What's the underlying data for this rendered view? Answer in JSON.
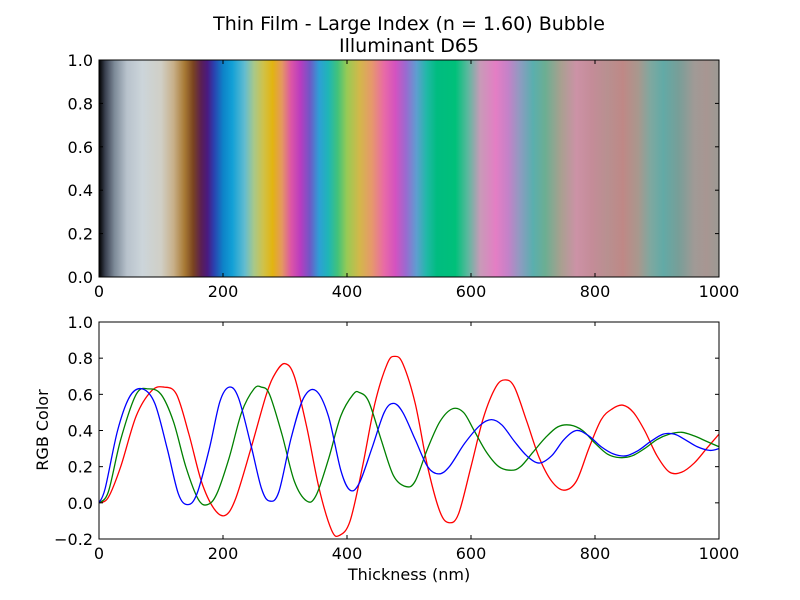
{
  "chart_data": [
    {
      "type": "heatmap",
      "title": "Thin Film - Large Index (n = 1.60) Bubble",
      "subtitle": "Illuminant D65",
      "xlabel": "",
      "ylabel": "",
      "xlim": [
        0,
        1000
      ],
      "ylim": [
        0,
        1
      ],
      "x_ticks": [
        "0",
        "200",
        "400",
        "600",
        "800",
        "1000"
      ],
      "y_ticks": [
        "0.0",
        "0.2",
        "0.4",
        "0.6",
        "0.8",
        "1.0"
      ],
      "color_stripe": [
        {
          "x": 0,
          "color": "#000000"
        },
        {
          "x": 10,
          "color": "#3a4150"
        },
        {
          "x": 25,
          "color": "#7d8a98"
        },
        {
          "x": 45,
          "color": "#b8c2cc"
        },
        {
          "x": 70,
          "color": "#ccd5da"
        },
        {
          "x": 100,
          "color": "#d0cfc6"
        },
        {
          "x": 120,
          "color": "#c8b08a"
        },
        {
          "x": 138,
          "color": "#a87a35"
        },
        {
          "x": 152,
          "color": "#7a4420"
        },
        {
          "x": 165,
          "color": "#5a1f55"
        },
        {
          "x": 175,
          "color": "#4a1a80"
        },
        {
          "x": 185,
          "color": "#2c3fae"
        },
        {
          "x": 200,
          "color": "#0d82c8"
        },
        {
          "x": 215,
          "color": "#12a0d6"
        },
        {
          "x": 235,
          "color": "#62bcd0"
        },
        {
          "x": 250,
          "color": "#a8c88a"
        },
        {
          "x": 265,
          "color": "#cfc24a"
        },
        {
          "x": 280,
          "color": "#e2b410"
        },
        {
          "x": 295,
          "color": "#e49860"
        },
        {
          "x": 310,
          "color": "#dc55a6"
        },
        {
          "x": 325,
          "color": "#b83cc0"
        },
        {
          "x": 340,
          "color": "#7058c6"
        },
        {
          "x": 355,
          "color": "#2e9fd6"
        },
        {
          "x": 370,
          "color": "#1fb6b6"
        },
        {
          "x": 385,
          "color": "#42c27a"
        },
        {
          "x": 400,
          "color": "#98ca55"
        },
        {
          "x": 420,
          "color": "#d2b84a"
        },
        {
          "x": 440,
          "color": "#e6986c"
        },
        {
          "x": 460,
          "color": "#e86aa6"
        },
        {
          "x": 478,
          "color": "#d452c0"
        },
        {
          "x": 495,
          "color": "#9a6ad0"
        },
        {
          "x": 512,
          "color": "#5e9ed0"
        },
        {
          "x": 528,
          "color": "#22b8a8"
        },
        {
          "x": 545,
          "color": "#00bc80"
        },
        {
          "x": 575,
          "color": "#00c07a"
        },
        {
          "x": 595,
          "color": "#5cb89e"
        },
        {
          "x": 615,
          "color": "#c89ab8"
        },
        {
          "x": 640,
          "color": "#e47ec4"
        },
        {
          "x": 660,
          "color": "#c482c8"
        },
        {
          "x": 680,
          "color": "#8c9cc0"
        },
        {
          "x": 700,
          "color": "#5aafae"
        },
        {
          "x": 720,
          "color": "#6cae92"
        },
        {
          "x": 745,
          "color": "#a8a090"
        },
        {
          "x": 770,
          "color": "#cc92a6"
        },
        {
          "x": 795,
          "color": "#c48c98"
        },
        {
          "x": 820,
          "color": "#b89090"
        },
        {
          "x": 845,
          "color": "#bf8886"
        },
        {
          "x": 870,
          "color": "#a8988e"
        },
        {
          "x": 890,
          "color": "#7ea8a0"
        },
        {
          "x": 910,
          "color": "#62aaa6"
        },
        {
          "x": 935,
          "color": "#789e98"
        },
        {
          "x": 960,
          "color": "#a09a96"
        },
        {
          "x": 980,
          "color": "#a89692"
        },
        {
          "x": 1000,
          "color": "#9c9a94"
        }
      ]
    },
    {
      "type": "line",
      "title": "",
      "xlabel": "Thickness (nm)",
      "ylabel": "RGB Color",
      "xlim": [
        0,
        1000
      ],
      "ylim": [
        -0.2,
        1.0
      ],
      "x_ticks": [
        "0",
        "200",
        "400",
        "600",
        "800",
        "1000"
      ],
      "y_ticks": [
        "−0.2",
        "0.0",
        "0.2",
        "0.4",
        "0.6",
        "0.8",
        "1.0"
      ],
      "series": [
        {
          "color": "#ff0000",
          "points": [
            [
              0,
              0
            ],
            [
              15,
              0.03
            ],
            [
              35,
              0.2
            ],
            [
              60,
              0.48
            ],
            [
              85,
              0.62
            ],
            [
              105,
              0.64
            ],
            [
              125,
              0.6
            ],
            [
              145,
              0.38
            ],
            [
              165,
              0.12
            ],
            [
              185,
              -0.03
            ],
            [
              203,
              -0.07
            ],
            [
              220,
              0.02
            ],
            [
              245,
              0.3
            ],
            [
              270,
              0.6
            ],
            [
              285,
              0.72
            ],
            [
              300,
              0.77
            ],
            [
              315,
              0.7
            ],
            [
              335,
              0.42
            ],
            [
              355,
              0.08
            ],
            [
              375,
              -0.15
            ],
            [
              388,
              -0.18
            ],
            [
              405,
              -0.1
            ],
            [
              425,
              0.2
            ],
            [
              445,
              0.55
            ],
            [
              465,
              0.77
            ],
            [
              477,
              0.81
            ],
            [
              490,
              0.77
            ],
            [
              510,
              0.55
            ],
            [
              530,
              0.2
            ],
            [
              550,
              -0.05
            ],
            [
              565,
              -0.11
            ],
            [
              580,
              -0.06
            ],
            [
              600,
              0.2
            ],
            [
              620,
              0.47
            ],
            [
              640,
              0.64
            ],
            [
              655,
              0.68
            ],
            [
              670,
              0.64
            ],
            [
              690,
              0.45
            ],
            [
              710,
              0.25
            ],
            [
              730,
              0.12
            ],
            [
              750,
              0.07
            ],
            [
              770,
              0.12
            ],
            [
              790,
              0.3
            ],
            [
              810,
              0.46
            ],
            [
              828,
              0.52
            ],
            [
              845,
              0.54
            ],
            [
              862,
              0.5
            ],
            [
              880,
              0.4
            ],
            [
              900,
              0.26
            ],
            [
              920,
              0.17
            ],
            [
              940,
              0.17
            ],
            [
              960,
              0.22
            ],
            [
              980,
              0.3
            ],
            [
              1000,
              0.38
            ]
          ]
        },
        {
          "color": "#008000",
          "points": [
            [
              0,
              0
            ],
            [
              15,
              0.06
            ],
            [
              35,
              0.35
            ],
            [
              60,
              0.6
            ],
            [
              80,
              0.63
            ],
            [
              100,
              0.6
            ],
            [
              120,
              0.45
            ],
            [
              140,
              0.2
            ],
            [
              160,
              0.02
            ],
            [
              175,
              -0.01
            ],
            [
              190,
              0.05
            ],
            [
              210,
              0.25
            ],
            [
              230,
              0.5
            ],
            [
              250,
              0.63
            ],
            [
              262,
              0.64
            ],
            [
              275,
              0.6
            ],
            [
              295,
              0.38
            ],
            [
              315,
              0.12
            ],
            [
              335,
              0.01
            ],
            [
              350,
              0.04
            ],
            [
              370,
              0.24
            ],
            [
              390,
              0.48
            ],
            [
              410,
              0.6
            ],
            [
              420,
              0.61
            ],
            [
              435,
              0.56
            ],
            [
              455,
              0.35
            ],
            [
              475,
              0.15
            ],
            [
              495,
              0.09
            ],
            [
              510,
              0.12
            ],
            [
              530,
              0.3
            ],
            [
              550,
              0.45
            ],
            [
              570,
              0.52
            ],
            [
              588,
              0.5
            ],
            [
              605,
              0.4
            ],
            [
              625,
              0.28
            ],
            [
              645,
              0.2
            ],
            [
              665,
              0.18
            ],
            [
              680,
              0.2
            ],
            [
              700,
              0.28
            ],
            [
              720,
              0.36
            ],
            [
              740,
              0.42
            ],
            [
              760,
              0.43
            ],
            [
              780,
              0.4
            ],
            [
              800,
              0.33
            ],
            [
              820,
              0.27
            ],
            [
              840,
              0.25
            ],
            [
              860,
              0.26
            ],
            [
              880,
              0.3
            ],
            [
              900,
              0.35
            ],
            [
              920,
              0.38
            ],
            [
              940,
              0.39
            ],
            [
              960,
              0.37
            ],
            [
              980,
              0.34
            ],
            [
              1000,
              0.31
            ]
          ]
        },
        {
          "color": "#0000ff",
          "points": [
            [
              0,
              0
            ],
            [
              10,
              0.08
            ],
            [
              30,
              0.4
            ],
            [
              50,
              0.59
            ],
            [
              70,
              0.63
            ],
            [
              90,
              0.55
            ],
            [
              110,
              0.3
            ],
            [
              128,
              0.05
            ],
            [
              143,
              -0.01
            ],
            [
              158,
              0.05
            ],
            [
              178,
              0.3
            ],
            [
              195,
              0.56
            ],
            [
              210,
              0.64
            ],
            [
              225,
              0.58
            ],
            [
              245,
              0.32
            ],
            [
              262,
              0.08
            ],
            [
              275,
              0.01
            ],
            [
              290,
              0.06
            ],
            [
              310,
              0.36
            ],
            [
              330,
              0.58
            ],
            [
              350,
              0.62
            ],
            [
              370,
              0.48
            ],
            [
              390,
              0.18
            ],
            [
              405,
              0.07
            ],
            [
              420,
              0.11
            ],
            [
              440,
              0.3
            ],
            [
              460,
              0.5
            ],
            [
              475,
              0.55
            ],
            [
              490,
              0.5
            ],
            [
              510,
              0.35
            ],
            [
              530,
              0.2
            ],
            [
              548,
              0.16
            ],
            [
              565,
              0.2
            ],
            [
              590,
              0.33
            ],
            [
              615,
              0.43
            ],
            [
              633,
              0.46
            ],
            [
              650,
              0.43
            ],
            [
              670,
              0.34
            ],
            [
              690,
              0.26
            ],
            [
              710,
              0.22
            ],
            [
              730,
              0.26
            ],
            [
              750,
              0.35
            ],
            [
              770,
              0.4
            ],
            [
              790,
              0.37
            ],
            [
              810,
              0.31
            ],
            [
              830,
              0.27
            ],
            [
              850,
              0.26
            ],
            [
              870,
              0.29
            ],
            [
              890,
              0.34
            ],
            [
              910,
              0.38
            ],
            [
              928,
              0.38
            ],
            [
              945,
              0.35
            ],
            [
              965,
              0.31
            ],
            [
              985,
              0.29
            ],
            [
              1000,
              0.3
            ]
          ]
        }
      ]
    }
  ]
}
